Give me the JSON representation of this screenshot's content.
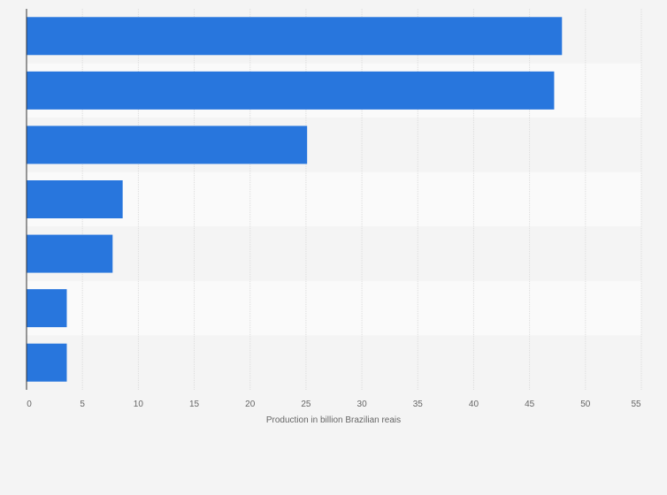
{
  "chart_data": {
    "type": "bar",
    "orientation": "horizontal",
    "title": "",
    "categories": [
      "",
      "",
      "",
      "",
      "",
      "",
      ""
    ],
    "values": [
      47.9,
      47.2,
      25.1,
      8.6,
      7.7,
      3.6,
      3.6
    ],
    "xlabel": "Production in billion Brazilian reais",
    "ylabel": "",
    "xlim": [
      0,
      55
    ],
    "xticks": [
      "0",
      "5",
      "10",
      "15",
      "20",
      "25",
      "30",
      "35",
      "40",
      "45",
      "50",
      "55"
    ],
    "grid": true,
    "legend": "none",
    "colors": {
      "bar": "#2876dd",
      "background": "#f4f4f4",
      "band_light": "#fafafa",
      "band_dark": "#f4f4f4",
      "grid": "#dcdcdc",
      "axis": "#333333",
      "text": "#666666"
    }
  }
}
